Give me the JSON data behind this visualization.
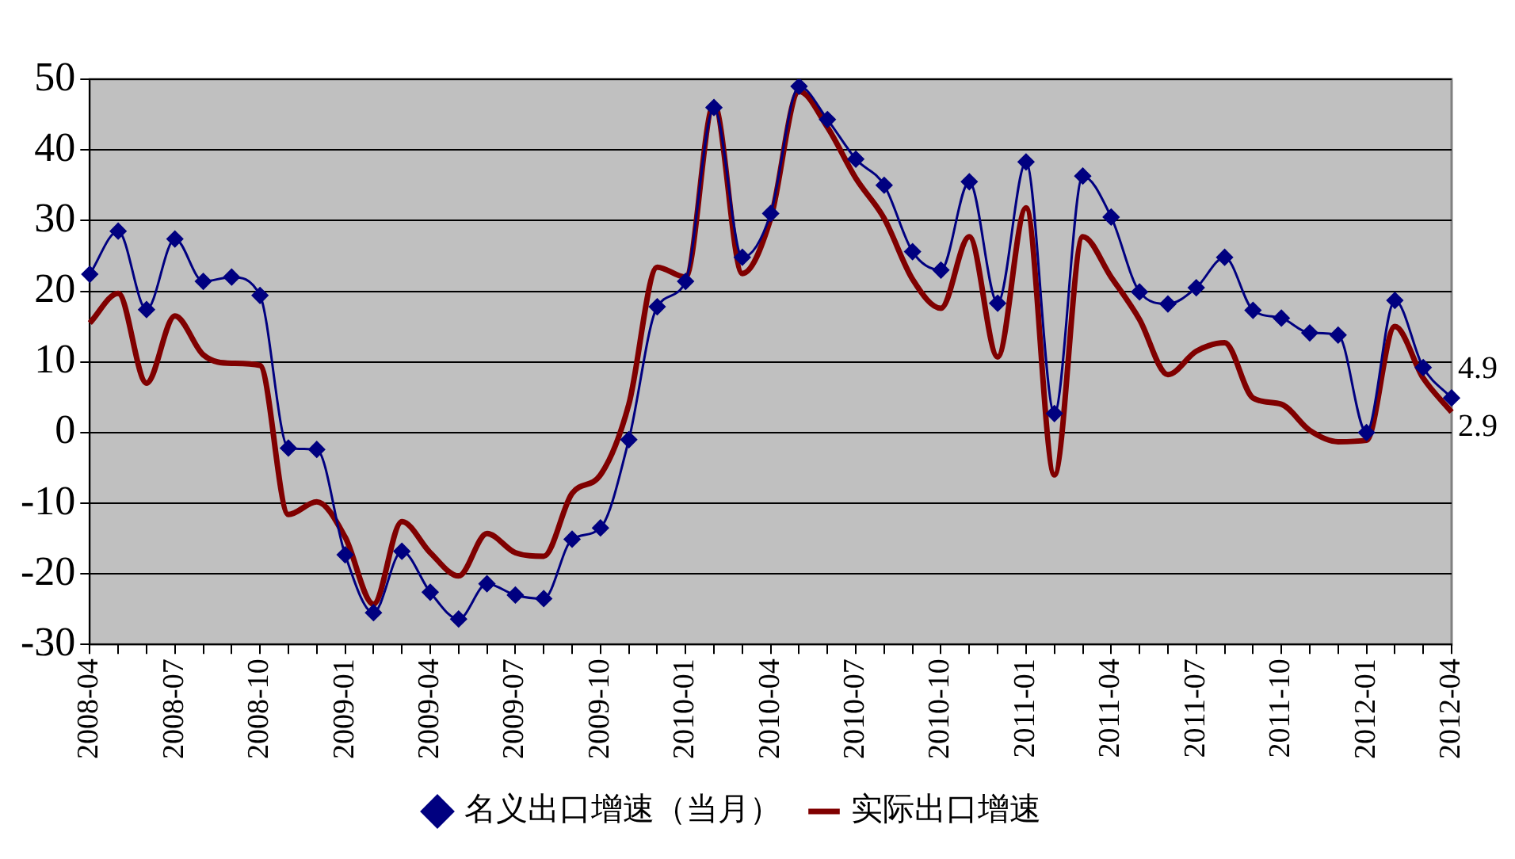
{
  "chart_data": {
    "type": "line",
    "categories": [
      "2008-04",
      null,
      null,
      "2008-07",
      null,
      null,
      "2008-10",
      null,
      null,
      "2009-01",
      null,
      null,
      "2009-04",
      null,
      null,
      "2009-07",
      null,
      null,
      "2009-10",
      null,
      null,
      "2010-01",
      null,
      null,
      "2010-04",
      null,
      null,
      "2010-07",
      null,
      null,
      "2010-10",
      null,
      null,
      "2011-01",
      null,
      null,
      "2011-04",
      null,
      null,
      "2011-07",
      null,
      null,
      "2011-10",
      null,
      null,
      "2012-01",
      null,
      null,
      "2012-04"
    ],
    "series": [
      {
        "name": "名义出口增速（当月）",
        "color": "#000080",
        "marker": "diamond",
        "values": [
          22.4,
          28.5,
          17.4,
          27.4,
          21.4,
          22,
          19.4,
          -2.2,
          -2.4,
          -17.3,
          -25.5,
          -16.8,
          -22.6,
          -26.4,
          -21.4,
          -23,
          -23.5,
          -15.1,
          -13.5,
          -1,
          17.8,
          21.4,
          46,
          24.8,
          31,
          49,
          44.3,
          38.7,
          35,
          25.6,
          23,
          35.5,
          18.3,
          38.3,
          2.7,
          36.3,
          30.5,
          19.9,
          18.2,
          20.5,
          24.8,
          17.3,
          16.2,
          14.1,
          13.8,
          0,
          18.7,
          9.2,
          4.9
        ],
        "value_labels": [
          null,
          null,
          null,
          null,
          null,
          null,
          null,
          null,
          null,
          null,
          null,
          null,
          null,
          null,
          null,
          null,
          null,
          null,
          null,
          null,
          null,
          null,
          null,
          null,
          null,
          null,
          null,
          null,
          null,
          null,
          null,
          null,
          null,
          null,
          null,
          null,
          null,
          null,
          null,
          null,
          null,
          null,
          null,
          null,
          null,
          null,
          null,
          null,
          "4.9"
        ]
      },
      {
        "name": "实际出口增速",
        "color": "#800000",
        "marker": "none",
        "values": [
          15.5,
          19.7,
          7,
          16.5,
          11,
          9.8,
          9.5,
          -11.6,
          -9.8,
          -14.8,
          -24.3,
          -12.6,
          -17,
          -20.3,
          -14.3,
          -17,
          -17.5,
          -8.6,
          -6,
          4,
          23.4,
          22,
          46.5,
          22.5,
          30.3,
          48.3,
          43.2,
          36,
          30.3,
          21.7,
          17.6,
          27.7,
          10.7,
          31.8,
          -6,
          27.7,
          22,
          16,
          8.2,
          11.5,
          12.7,
          4.9,
          4,
          0.3,
          -1.3,
          -1.1,
          15,
          7.7,
          2.9
        ],
        "value_labels": [
          null,
          null,
          null,
          null,
          null,
          null,
          null,
          null,
          null,
          null,
          null,
          null,
          null,
          null,
          null,
          null,
          null,
          null,
          null,
          null,
          null,
          null,
          null,
          null,
          null,
          null,
          null,
          null,
          null,
          null,
          null,
          null,
          null,
          null,
          null,
          null,
          null,
          null,
          null,
          null,
          null,
          null,
          null,
          null,
          null,
          null,
          null,
          null,
          "2.9"
        ]
      }
    ],
    "ylim": [
      -30,
      50
    ],
    "yticks": [
      -30,
      -20,
      -10,
      0,
      10,
      20,
      30,
      40,
      50
    ],
    "grid": "y",
    "legend": "bottom",
    "line_style": "solid"
  }
}
